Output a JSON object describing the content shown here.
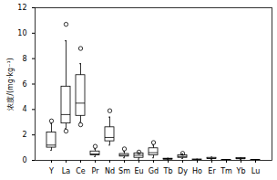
{
  "chart_data": {
    "type": "box",
    "y_label": "浓度/(mg·kg⁻¹)",
    "categories": [
      "Y",
      "La",
      "Ce",
      "Pr",
      "Nd",
      "Sm",
      "Eu",
      "Gd",
      "Tb",
      "Dy",
      "Ho",
      "Er",
      "Tm",
      "Yb",
      "Lu"
    ],
    "stats": [
      {
        "whisker_low": 0.8,
        "q1": 1.0,
        "median": 1.2,
        "q3": 2.2,
        "whisker_high": 2.9,
        "outliers": [
          3.1
        ]
      },
      {
        "whisker_low": 2.5,
        "q1": 2.9,
        "median": 3.6,
        "q3": 5.8,
        "whisker_high": 9.4,
        "outliers": [
          10.7,
          2.3
        ]
      },
      {
        "whisker_low": 3.0,
        "q1": 3.5,
        "median": 4.5,
        "q3": 6.7,
        "whisker_high": 7.6,
        "outliers": [
          8.8,
          2.8
        ]
      },
      {
        "whisker_low": 0.3,
        "q1": 0.4,
        "median": 0.5,
        "q3": 0.7,
        "whisker_high": 0.9,
        "outliers": [
          1.1
        ]
      },
      {
        "whisker_low": 1.2,
        "q1": 1.5,
        "median": 1.8,
        "q3": 2.6,
        "whisker_high": 3.4,
        "outliers": [
          3.9
        ]
      },
      {
        "whisker_low": 0.2,
        "q1": 0.3,
        "median": 0.4,
        "q3": 0.5,
        "whisker_high": 0.7,
        "outliers": [
          0.9
        ]
      },
      {
        "whisker_low": 0.1,
        "q1": 0.2,
        "median": 0.4,
        "q3": 0.55,
        "whisker_high": 0.6,
        "outliers": [
          0.65
        ]
      },
      {
        "whisker_low": 0.2,
        "q1": 0.4,
        "median": 0.6,
        "q3": 0.95,
        "whisker_high": 1.2,
        "outliers": [
          1.4
        ]
      },
      {
        "whisker_low": 0.05,
        "q1": 0.07,
        "median": 0.1,
        "q3": 0.13,
        "whisker_high": 0.16,
        "outliers": []
      },
      {
        "whisker_low": 0.15,
        "q1": 0.2,
        "median": 0.3,
        "q3": 0.4,
        "whisker_high": 0.5,
        "outliers": [
          0.55
        ]
      },
      {
        "whisker_low": 0.03,
        "q1": 0.04,
        "median": 0.05,
        "q3": 0.07,
        "whisker_high": 0.09,
        "outliers": []
      },
      {
        "whisker_low": 0.08,
        "q1": 0.12,
        "median": 0.15,
        "q3": 0.2,
        "whisker_high": 0.25,
        "outliers": []
      },
      {
        "whisker_low": 0.01,
        "q1": 0.02,
        "median": 0.03,
        "q3": 0.04,
        "whisker_high": 0.05,
        "outliers": []
      },
      {
        "whisker_low": 0.07,
        "q1": 0.1,
        "median": 0.13,
        "q3": 0.18,
        "whisker_high": 0.22,
        "outliers": []
      },
      {
        "whisker_low": 0.01,
        "q1": 0.02,
        "median": 0.02,
        "q3": 0.03,
        "whisker_high": 0.04,
        "outliers": []
      }
    ],
    "color": "#000000",
    "ylim": [
      0,
      12
    ],
    "yticks": [
      0,
      2,
      4,
      6,
      8,
      10,
      12
    ],
    "grid": false
  }
}
